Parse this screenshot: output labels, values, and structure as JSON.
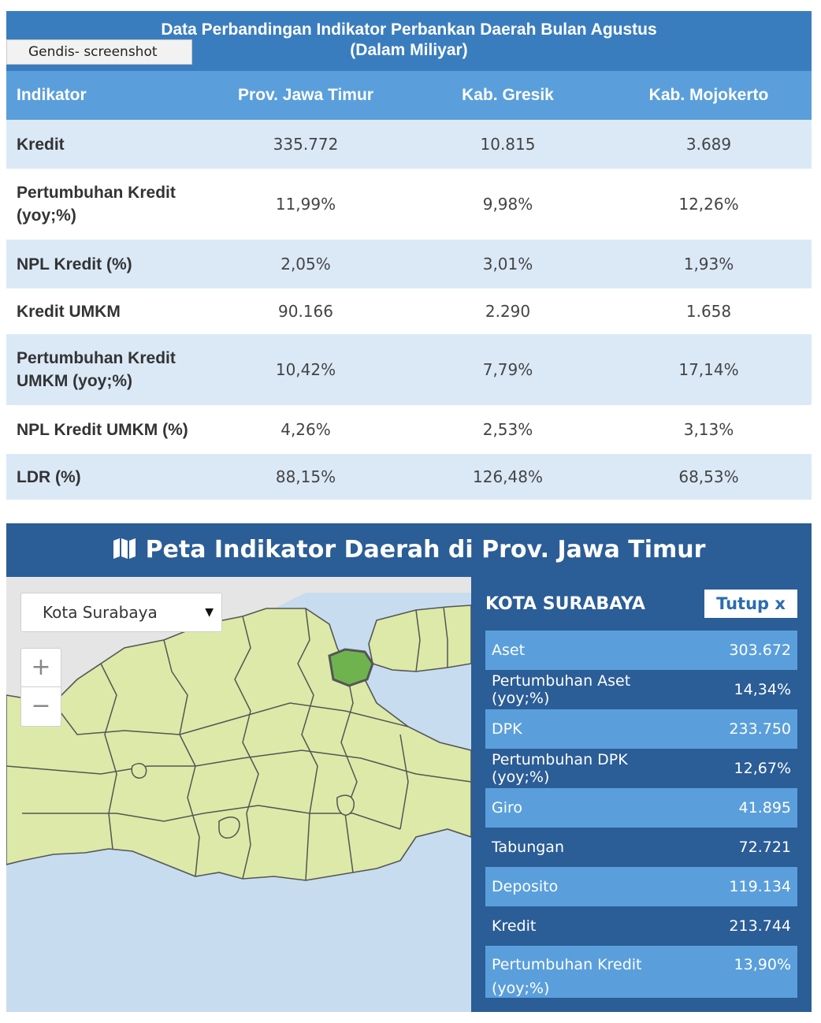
{
  "table": {
    "title_line1": "Data Perbandingan Indikator Perbankan Daerah Bulan Agustus",
    "title_line2": "(Dalam Miliyar)",
    "tooltip": "Gendis- screenshot",
    "headers": [
      "Indikator",
      "Prov. Jawa Timur",
      "Kab. Gresik",
      "Kab. Mojokerto"
    ],
    "rows": [
      {
        "label": "Kredit",
        "v1": "335.772",
        "v2": "10.815",
        "v3": "3.689"
      },
      {
        "label": "Pertumbuhan Kredit (yoy;%)",
        "v1": "11,99%",
        "v2": "9,98%",
        "v3": "12,26%"
      },
      {
        "label": "NPL Kredit (%)",
        "v1": "2,05%",
        "v2": "3,01%",
        "v3": "1,93%"
      },
      {
        "label": "Kredit UMKM",
        "v1": "90.166",
        "v2": "2.290",
        "v3": "1.658"
      },
      {
        "label": "Pertumbuhan Kredit UMKM (yoy;%)",
        "v1": "10,42%",
        "v2": "7,79%",
        "v3": "17,14%"
      },
      {
        "label": "NPL Kredit UMKM (%)",
        "v1": "4,26%",
        "v2": "2,53%",
        "v3": "3,13%"
      },
      {
        "label": "LDR (%)",
        "v1": "88,15%",
        "v2": "126,48%",
        "v3": "68,53%"
      }
    ]
  },
  "map": {
    "title": "Peta Indikator Daerah di Prov. Jawa Timur",
    "title_icon": "map-icon",
    "select_value": "Kota Surabaya",
    "zoom_in": "+",
    "zoom_out": "−",
    "colors": {
      "land": "#dde9a8",
      "selected": "#6fb34f",
      "sea": "#c7dcef",
      "outside": "#e5e5e5",
      "border": "#555555"
    }
  },
  "info": {
    "title": "KOTA SURABAYA",
    "close_label": "Tutup x",
    "rows": [
      {
        "label": "Aset",
        "value": "303.672"
      },
      {
        "label": "Pertumbuhan Aset (yoy;%)",
        "value": "14,34%"
      },
      {
        "label": "DPK",
        "value": "233.750"
      },
      {
        "label": "Pertumbuhan DPK (yoy;%)",
        "value": "12,67%"
      },
      {
        "label": "Giro",
        "value": "41.895"
      },
      {
        "label": "Tabungan",
        "value": "72.721"
      },
      {
        "label": "Deposito",
        "value": "119.134"
      },
      {
        "label": "Kredit",
        "value": "213.744"
      },
      {
        "label": "Pertumbuhan Kredit (yoy;%)",
        "value": "13,90%"
      }
    ]
  }
}
